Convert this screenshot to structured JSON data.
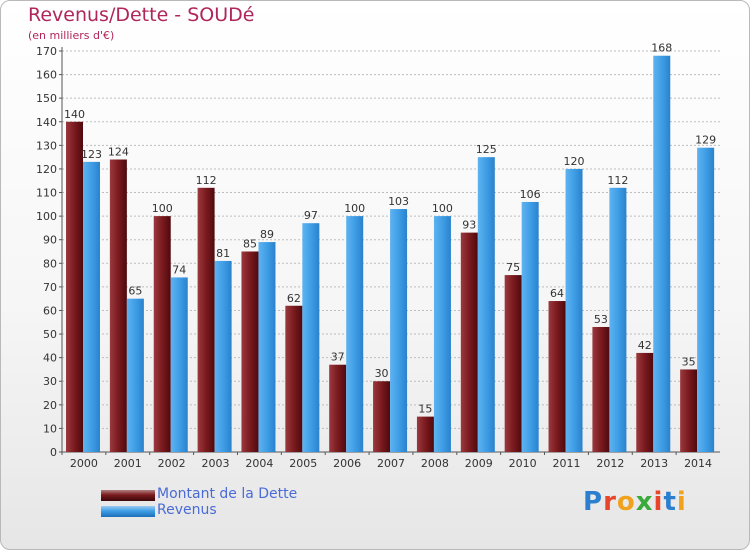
{
  "chart_data": {
    "type": "bar",
    "title": "Revenus/Dette - SOUDé",
    "subtitle": "(en milliers d'€)",
    "categories": [
      "2000",
      "2001",
      "2002",
      "2003",
      "2004",
      "2005",
      "2006",
      "2007",
      "2008",
      "2009",
      "2010",
      "2011",
      "2012",
      "2013",
      "2014"
    ],
    "series": [
      {
        "name": "Montant de la Dette",
        "color": "#7a1a1e",
        "values": [
          140,
          124,
          100,
          112,
          85,
          62,
          37,
          30,
          15,
          93,
          75,
          64,
          53,
          42,
          35
        ]
      },
      {
        "name": "Revenus",
        "color": "#3f9ee6",
        "values": [
          123,
          65,
          74,
          81,
          89,
          97,
          100,
          103,
          100,
          125,
          106,
          120,
          112,
          168,
          129
        ]
      }
    ],
    "ylim": [
      0,
      170
    ],
    "yticks": [
      0,
      10,
      20,
      30,
      40,
      50,
      60,
      70,
      80,
      90,
      100,
      110,
      120,
      130,
      140,
      150,
      160,
      170
    ],
    "grid": true,
    "legend_position": "bottom-left"
  },
  "logo": {
    "letters": [
      "P",
      "r",
      "o",
      "x",
      "i",
      "t",
      "i"
    ],
    "colors": [
      "#2c7ecf",
      "#e8462a",
      "#f0a21e",
      "#3aaa3a",
      "#e8462a",
      "#2c7ecf",
      "#f0a21e"
    ]
  }
}
